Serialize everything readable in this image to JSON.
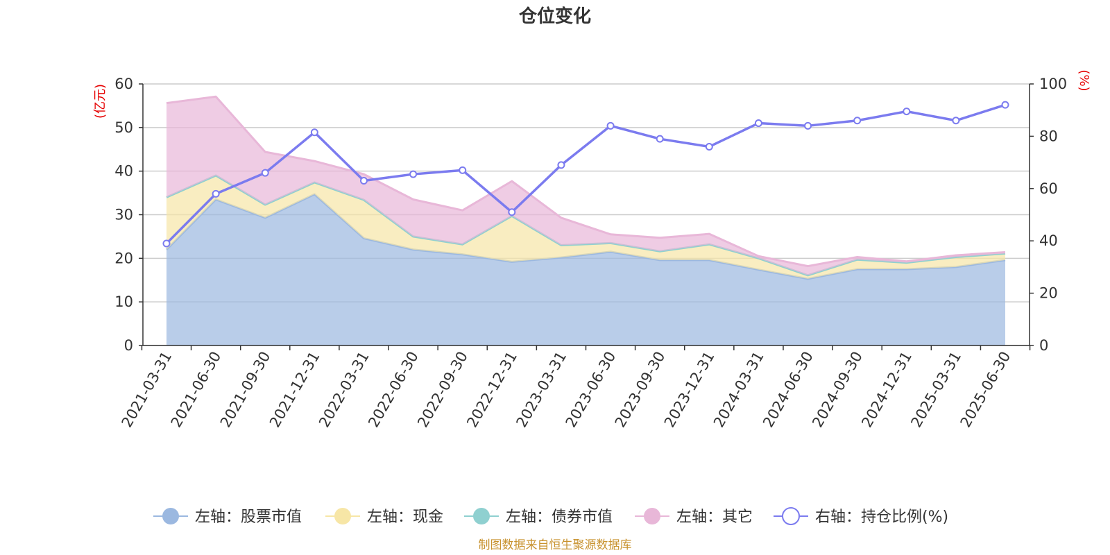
{
  "chart_data": {
    "type": "area",
    "title": "仓位变化",
    "left_axis": {
      "unit": "(亿元)",
      "ylim": [
        0,
        60
      ],
      "ticks": [
        0,
        10,
        20,
        30,
        40,
        50,
        60
      ]
    },
    "right_axis": {
      "unit": "(%)",
      "ylim": [
        0,
        100
      ],
      "ticks": [
        0,
        20,
        40,
        60,
        80,
        100
      ]
    },
    "categories": [
      "2021-03-31",
      "2021-06-30",
      "2021-09-30",
      "2021-12-31",
      "2022-03-31",
      "2022-06-30",
      "2022-09-30",
      "2022-12-31",
      "2023-03-31",
      "2023-06-30",
      "2023-09-30",
      "2023-12-31",
      "2024-03-31",
      "2024-06-30",
      "2024-09-30",
      "2024-12-31",
      "2025-03-31",
      "2025-06-30"
    ],
    "stacked": true,
    "series": [
      {
        "name": "左轴：股票市值",
        "axis": "left",
        "kind": "area",
        "color": "#9bb8e0",
        "values": [
          22.0,
          33.5,
          29.3,
          34.7,
          24.6,
          22.0,
          20.9,
          19.2,
          20.2,
          21.5,
          19.6,
          19.6,
          17.4,
          15.3,
          17.5,
          17.5,
          18.0,
          19.6
        ]
      },
      {
        "name": "左轴：现金",
        "axis": "left",
        "kind": "area",
        "color": "#f7e6a6",
        "values": [
          12.0,
          5.5,
          3.0,
          2.7,
          8.8,
          3.0,
          2.3,
          10.5,
          2.8,
          2.0,
          2.0,
          3.6,
          2.6,
          0.8,
          2.2,
          1.5,
          2.3,
          1.5
        ]
      },
      {
        "name": "左轴：债券市值",
        "axis": "left",
        "kind": "area",
        "color": "#8fd0d0",
        "values": [
          0,
          0,
          0,
          0,
          0,
          0,
          0,
          0,
          0,
          0,
          0,
          0,
          0,
          0,
          0,
          0,
          0,
          0
        ]
      },
      {
        "name": "左轴：其它",
        "axis": "left",
        "kind": "area",
        "color": "#e8b7d8",
        "values": [
          21.6,
          18.1,
          12.1,
          4.9,
          5.9,
          8.5,
          7.8,
          8.0,
          6.3,
          2.0,
          3.1,
          2.4,
          0.5,
          2.1,
          0.6,
          0.3,
          0.4,
          0.3
        ]
      },
      {
        "name": "右轴：持仓比例(%)",
        "axis": "right",
        "kind": "line",
        "color": "#7b7bef",
        "values": [
          39.0,
          58.0,
          66.0,
          81.5,
          63.0,
          65.5,
          67.0,
          51.0,
          69.0,
          84.0,
          79.0,
          76.0,
          85.0,
          84.0,
          86.0,
          89.5,
          86.0,
          92.0
        ]
      }
    ],
    "grid": true,
    "legend_position": "bottom"
  },
  "source_note": "制图数据来自恒生聚源数据库"
}
